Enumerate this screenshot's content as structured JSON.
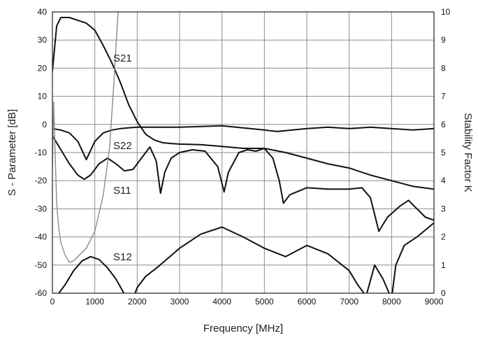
{
  "chart_data": {
    "type": "line",
    "xlabel": "Frequency [MHz]",
    "ylabel_left": "S - Parameter  [dB]",
    "ylabel_right": "Stability Factor K",
    "xlim": [
      0,
      9000
    ],
    "ylim_left": [
      -60,
      40
    ],
    "ylim_right": [
      0,
      10
    ],
    "xticks": [
      0,
      1000,
      2000,
      3000,
      4000,
      5000,
      6000,
      7000,
      8000,
      9000
    ],
    "yticks_left": [
      40,
      30,
      20,
      10,
      0,
      -10,
      -20,
      -30,
      -40,
      -50,
      -60
    ],
    "yticks_right": [
      10,
      9,
      8,
      7,
      6,
      5,
      4,
      3,
      2,
      1,
      0
    ],
    "grid": true,
    "series": [
      {
        "name": "S21",
        "axis": "left",
        "color": "#111111",
        "x": [
          0,
          100,
          200,
          400,
          600,
          800,
          1000,
          1200,
          1400,
          1600,
          1800,
          2000,
          2200,
          2400,
          2600,
          2800,
          3000,
          3500,
          4000,
          4500,
          5000,
          5500,
          6000,
          6500,
          7000,
          7500,
          8000,
          8500,
          9000
        ],
        "y": [
          19,
          35,
          38,
          38,
          37,
          36,
          33.5,
          28,
          22,
          15,
          7,
          1,
          -3.5,
          -5.5,
          -6.5,
          -6.8,
          -7,
          -7.2,
          -7.8,
          -8.5,
          -8.5,
          -10,
          -12,
          -14,
          -15.5,
          -18,
          -20,
          -22,
          -23
        ]
      },
      {
        "name": "S22",
        "axis": "left",
        "color": "#111111",
        "x": [
          0,
          200,
          400,
          600,
          800,
          1000,
          1200,
          1400,
          1600,
          1800,
          2000,
          2500,
          3000,
          4000,
          5000,
          5300,
          6000,
          6500,
          7000,
          7500,
          8000,
          8500,
          9000
        ],
        "y": [
          -1.5,
          -2,
          -3,
          -6,
          -12.5,
          -6,
          -3,
          -2,
          -1.5,
          -1.2,
          -1,
          -1,
          -1,
          -0.5,
          -2,
          -2.5,
          -1.5,
          -1,
          -1.5,
          -1,
          -1.5,
          -2,
          -1.5
        ]
      },
      {
        "name": "S11",
        "axis": "left",
        "color": "#111111",
        "x": [
          0,
          200,
          400,
          600,
          750,
          900,
          1100,
          1300,
          1500,
          1700,
          1900,
          2100,
          2300,
          2450,
          2550,
          2650,
          2800,
          3000,
          3300,
          3600,
          3900,
          4050,
          4150,
          4400,
          4600,
          4800,
          5000,
          5200,
          5350,
          5450,
          5600,
          6000,
          6500,
          7000,
          7300,
          7500,
          7600,
          7700,
          7900,
          8200,
          8400,
          8600,
          8800,
          9000
        ],
        "y": [
          -4,
          -9,
          -14,
          -18,
          -19.5,
          -18,
          -14,
          -12,
          -14,
          -16.5,
          -16,
          -12,
          -8,
          -13,
          -24.5,
          -17,
          -12,
          -10,
          -9,
          -9.5,
          -15,
          -24,
          -17,
          -10,
          -9,
          -9.5,
          -8.5,
          -12,
          -20,
          -28,
          -25,
          -22.5,
          -23,
          -23,
          -22.5,
          -26,
          -32,
          -38,
          -33,
          -29,
          -27,
          -30,
          -33,
          -34
        ]
      },
      {
        "name": "S12",
        "axis": "left",
        "color": "#111111",
        "x": [
          0,
          100,
          300,
          500,
          700,
          900,
          1100,
          1300,
          1500,
          1650,
          1750,
          1900,
          2000,
          2200,
          2500,
          3000,
          3500,
          4000,
          4500,
          5000,
          5500,
          6000,
          6500,
          7000,
          7200,
          7400,
          7600,
          7800,
          8000,
          8100,
          8300,
          8600,
          9000
        ],
        "y": [
          -62,
          -61,
          -57,
          -52,
          -48.5,
          -47,
          -48,
          -51,
          -55,
          -59,
          -62,
          -62,
          -58,
          -54,
          -50.5,
          -44,
          -39,
          -36.5,
          -40,
          -44,
          -47,
          -43,
          -46,
          -52,
          -57,
          -61,
          -50,
          -55,
          -62,
          -50,
          -43,
          -40,
          -35
        ]
      },
      {
        "name": "K",
        "axis": "right",
        "color": "#8a8a8a",
        "x": [
          0,
          30,
          60,
          100,
          150,
          200,
          300,
          400,
          500,
          600,
          800,
          1000,
          1200,
          1350,
          1450,
          1500,
          1550
        ],
        "y": [
          4.5,
          6.8,
          5.2,
          3.2,
          2.3,
          1.8,
          1.35,
          1.1,
          1.15,
          1.3,
          1.6,
          2.2,
          3.5,
          5.2,
          7.5,
          8.8,
          10
        ]
      }
    ]
  }
}
